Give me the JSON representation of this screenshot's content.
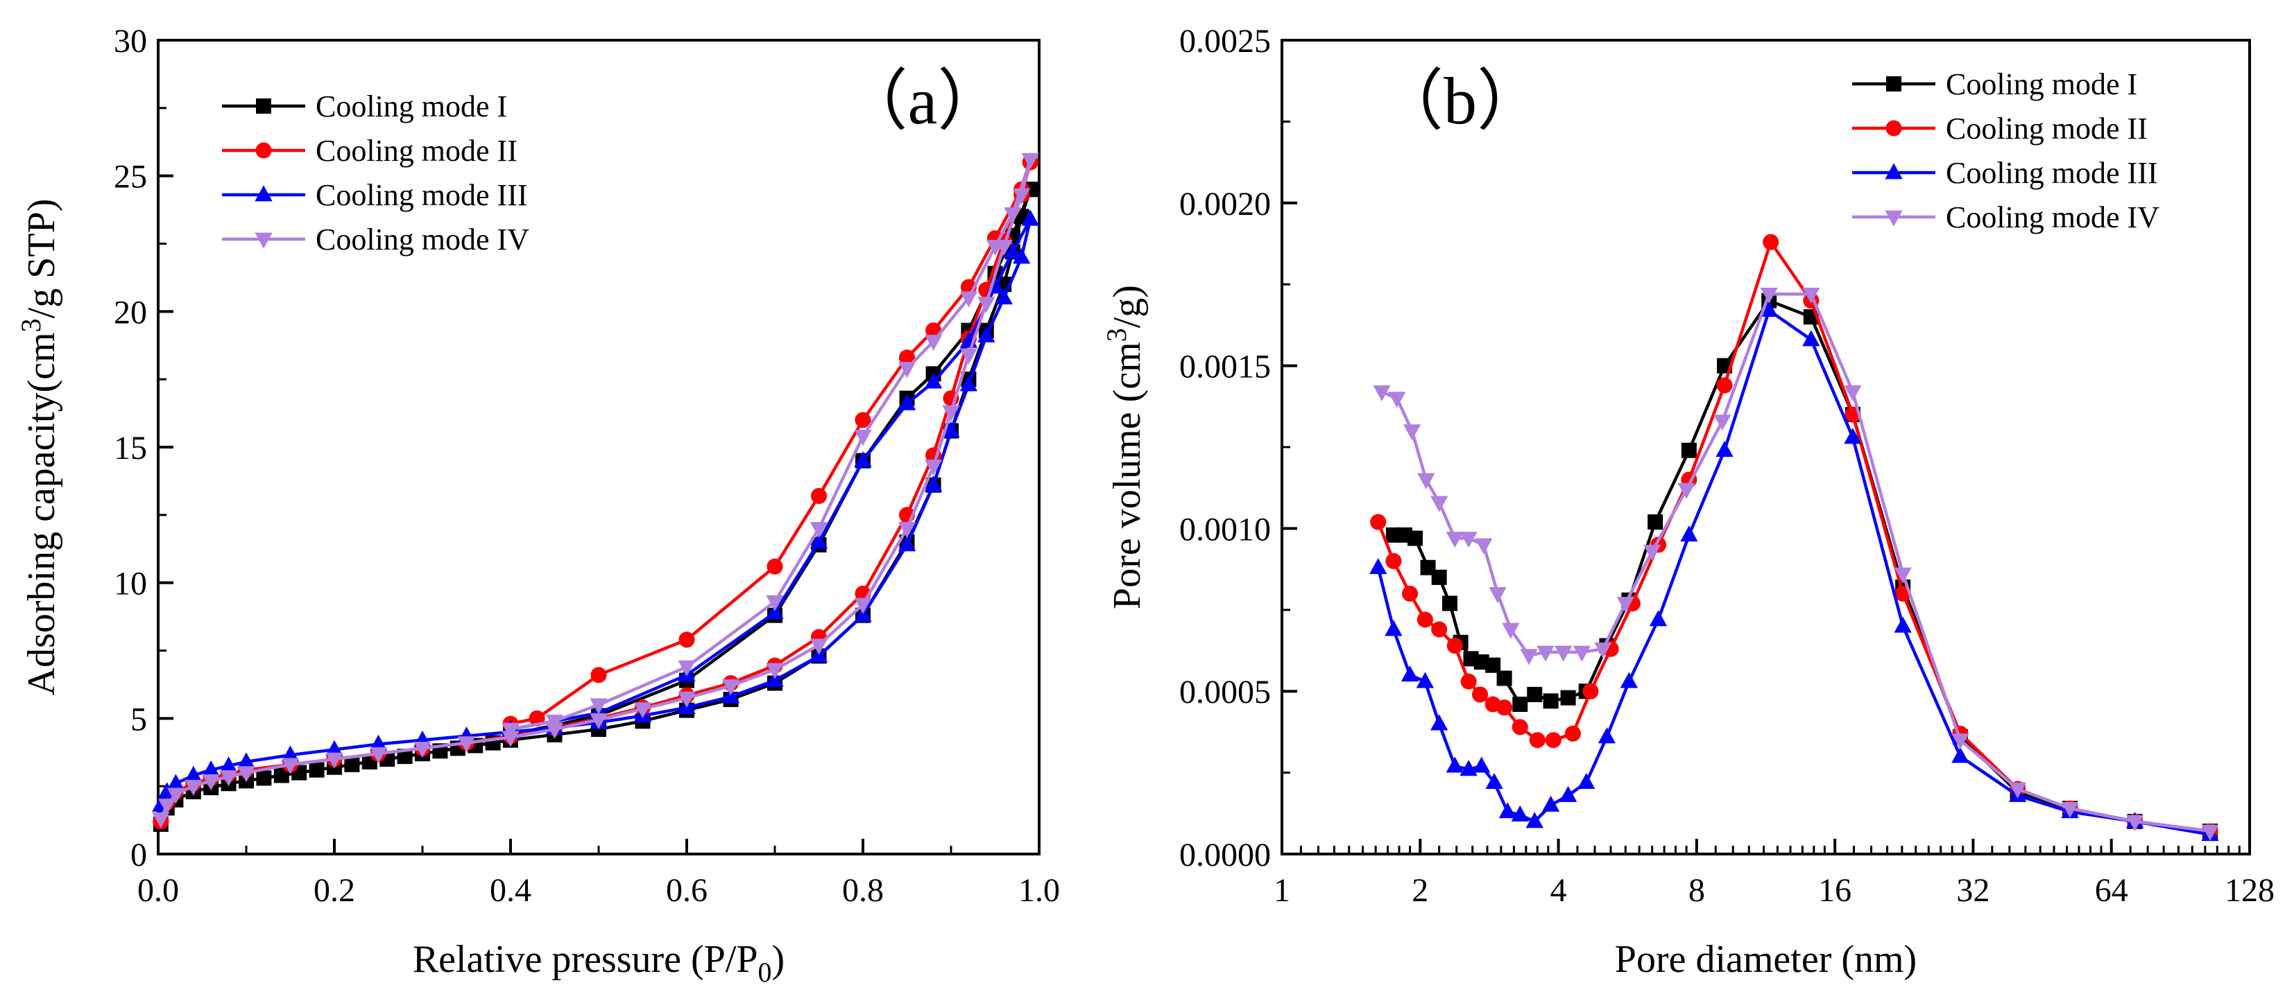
{
  "chart_data": [
    {
      "type": "line",
      "panel_label": "（a）",
      "xlabel": "Relative pressure (P/P",
      "xlabel_sub": "0",
      "xlabel_end": ")",
      "ylabel_pre": "Adsorbing capacity(cm",
      "ylabel_sup": "3",
      "ylabel_post": "/g STP)",
      "xlim": [
        0.0,
        1.0
      ],
      "ylim": [
        0,
        30
      ],
      "xticks": [
        0.0,
        0.2,
        0.4,
        0.6,
        0.8,
        1.0
      ],
      "xtick_labels": [
        "0.0",
        "0.2",
        "0.4",
        "0.6",
        "0.8",
        "1.0"
      ],
      "yticks": [
        0,
        5,
        10,
        15,
        20,
        25,
        30
      ],
      "ytick_labels": [
        "0",
        "5",
        "10",
        "15",
        "20",
        "25",
        "30"
      ],
      "legend_position": "top-left",
      "series": [
        {
          "name": "Cooling mode I",
          "color": "#000000",
          "marker": "square",
          "adsorption": {
            "x": [
              0.003,
              0.01,
              0.02,
              0.04,
              0.06,
              0.08,
              0.1,
              0.12,
              0.14,
              0.16,
              0.18,
              0.2,
              0.22,
              0.24,
              0.26,
              0.28,
              0.3,
              0.32,
              0.34,
              0.36,
              0.38,
              0.4,
              0.45,
              0.5,
              0.55,
              0.6,
              0.65,
              0.7,
              0.75,
              0.8,
              0.85,
              0.88,
              0.9,
              0.92,
              0.94,
              0.96,
              0.97,
              0.98,
              0.99
            ],
            "y": [
              1.1,
              1.7,
              2.0,
              2.3,
              2.45,
              2.6,
              2.7,
              2.8,
              2.9,
              3.0,
              3.1,
              3.2,
              3.3,
              3.4,
              3.5,
              3.6,
              3.7,
              3.8,
              3.9,
              4.0,
              4.1,
              4.2,
              4.4,
              4.6,
              4.9,
              5.3,
              5.7,
              6.3,
              7.3,
              8.8,
              11.5,
              13.6,
              15.6,
              17.5,
              19.3,
              21.0,
              22.2,
              23.5,
              24.5
            ]
          },
          "desorption": {
            "x": [
              0.99,
              0.97,
              0.95,
              0.92,
              0.88,
              0.85,
              0.8,
              0.75,
              0.7,
              0.6,
              0.5,
              0.4
            ],
            "y": [
              24.5,
              22.8,
              21.4,
              19.3,
              17.7,
              16.8,
              14.5,
              11.4,
              8.8,
              6.4,
              5.1,
              4.4
            ]
          }
        },
        {
          "name": "Cooling mode II",
          "color": "#ff0000",
          "marker": "circle",
          "adsorption": {
            "x": [
              0.003,
              0.01,
              0.02,
              0.04,
              0.06,
              0.08,
              0.1,
              0.15,
              0.2,
              0.25,
              0.3,
              0.35,
              0.4,
              0.45,
              0.5,
              0.55,
              0.6,
              0.65,
              0.7,
              0.75,
              0.8,
              0.85,
              0.88,
              0.9,
              0.92,
              0.94,
              0.96,
              0.98,
              0.99
            ],
            "y": [
              1.2,
              1.9,
              2.3,
              2.6,
              2.8,
              2.95,
              3.1,
              3.3,
              3.5,
              3.7,
              3.9,
              4.1,
              4.35,
              4.65,
              5.0,
              5.4,
              5.85,
              6.3,
              6.95,
              8.0,
              9.6,
              12.5,
              14.7,
              16.8,
              19.0,
              20.8,
              22.6,
              24.3,
              25.5
            ]
          },
          "desorption": {
            "x": [
              0.99,
              0.98,
              0.95,
              0.92,
              0.88,
              0.85,
              0.8,
              0.75,
              0.7,
              0.6,
              0.5,
              0.43,
              0.4
            ],
            "y": [
              25.5,
              24.5,
              22.7,
              20.9,
              19.3,
              18.3,
              16.0,
              13.2,
              10.6,
              7.9,
              6.6,
              5.0,
              4.8
            ]
          }
        },
        {
          "name": "Cooling mode III",
          "color": "#0000ff",
          "marker": "triangle-up",
          "adsorption": {
            "x": [
              0.003,
              0.01,
              0.02,
              0.04,
              0.06,
              0.08,
              0.1,
              0.15,
              0.2,
              0.25,
              0.3,
              0.35,
              0.4,
              0.45,
              0.5,
              0.55,
              0.6,
              0.65,
              0.7,
              0.75,
              0.8,
              0.85,
              0.88,
              0.9,
              0.92,
              0.94,
              0.96,
              0.98,
              0.99
            ],
            "y": [
              1.8,
              2.3,
              2.6,
              2.9,
              3.1,
              3.25,
              3.4,
              3.65,
              3.85,
              4.05,
              4.2,
              4.35,
              4.5,
              4.65,
              4.85,
              5.1,
              5.4,
              5.8,
              6.4,
              7.3,
              8.8,
              11.4,
              13.6,
              15.6,
              17.3,
              19.1,
              20.5,
              22.0,
              23.4
            ]
          },
          "desorption": {
            "x": [
              0.99,
              0.97,
              0.95,
              0.92,
              0.88,
              0.85,
              0.8,
              0.75,
              0.7,
              0.6,
              0.5,
              0.4
            ],
            "y": [
              23.4,
              22.2,
              20.9,
              18.9,
              17.4,
              16.6,
              14.5,
              11.5,
              8.9,
              6.6,
              5.2,
              4.6
            ]
          }
        },
        {
          "name": "Cooling mode IV",
          "color": "#b07fe0",
          "marker": "triangle-down",
          "adsorption": {
            "x": [
              0.003,
              0.01,
              0.02,
              0.04,
              0.06,
              0.08,
              0.1,
              0.15,
              0.2,
              0.25,
              0.3,
              0.35,
              0.4,
              0.45,
              0.5,
              0.55,
              0.6,
              0.65,
              0.7,
              0.75,
              0.8,
              0.85,
              0.88,
              0.9,
              0.92,
              0.94,
              0.96,
              0.98,
              0.99
            ],
            "y": [
              1.3,
              1.8,
              2.2,
              2.5,
              2.7,
              2.85,
              3.0,
              3.3,
              3.5,
              3.7,
              3.9,
              4.1,
              4.3,
              4.6,
              4.95,
              5.35,
              5.75,
              6.2,
              6.8,
              7.7,
              9.2,
              12.0,
              14.3,
              16.3,
              18.4,
              20.3,
              22.4,
              24.3,
              25.6
            ]
          },
          "desorption": {
            "x": [
              0.99,
              0.97,
              0.95,
              0.92,
              0.88,
              0.85,
              0.8,
              0.75,
              0.7,
              0.6,
              0.5,
              0.45,
              0.4
            ],
            "y": [
              25.6,
              23.6,
              22.4,
              20.5,
              18.9,
              17.9,
              15.4,
              12.0,
              9.3,
              6.9,
              5.5,
              4.9,
              4.6
            ]
          }
        }
      ]
    },
    {
      "type": "line",
      "panel_label": "（b）",
      "xlabel": "Pore diameter (nm)",
      "ylabel_pre": "Pore volume (cm",
      "ylabel_sup": "3",
      "ylabel_post": "/g)",
      "x_scale": "log2",
      "xlim": [
        1,
        128
      ],
      "ylim": [
        0,
        0.0025
      ],
      "xticks": [
        1,
        2,
        4,
        8,
        16,
        32,
        64,
        128
      ],
      "xtick_labels": [
        "1",
        "2",
        "4",
        "8",
        "16",
        "32",
        "64",
        "128"
      ],
      "yticks": [
        0,
        0.0005,
        0.001,
        0.0015,
        0.002,
        0.0025
      ],
      "ytick_labels": [
        "0.0000",
        "0.0005",
        "0.0010",
        "0.0015",
        "0.0020",
        "0.0025"
      ],
      "legend_position": "top-right",
      "series": [
        {
          "name": "Cooling mode I",
          "color": "#000000",
          "marker": "square",
          "x": [
            1.75,
            1.85,
            1.95,
            2.08,
            2.2,
            2.32,
            2.45,
            2.58,
            2.72,
            2.88,
            3.05,
            3.3,
            3.55,
            3.85,
            4.2,
            4.6,
            5.1,
            5.7,
            6.5,
            7.7,
            9.2,
            11.5,
            14.2,
            17.5,
            22.5,
            30.0,
            40.0,
            52.0,
            72.0,
            105.0
          ],
          "y": [
            0.00098,
            0.00098,
            0.00097,
            0.00088,
            0.00085,
            0.00077,
            0.00065,
            0.0006,
            0.00059,
            0.00058,
            0.00054,
            0.00046,
            0.00049,
            0.00047,
            0.00048,
            0.0005,
            0.00064,
            0.00078,
            0.00102,
            0.00124,
            0.0015,
            0.0017,
            0.00165,
            0.00135,
            0.00082,
            0.00036,
            0.00019,
            0.00014,
            0.0001,
            7e-05
          ]
        },
        {
          "name": "Cooling mode II",
          "color": "#ff0000",
          "marker": "circle",
          "x": [
            1.62,
            1.75,
            1.9,
            2.05,
            2.2,
            2.38,
            2.55,
            2.7,
            2.88,
            3.05,
            3.3,
            3.6,
            3.9,
            4.3,
            4.7,
            5.2,
            5.8,
            6.6,
            7.7,
            9.2,
            11.6,
            14.2,
            17.5,
            22.5,
            30.0,
            40.0,
            52.0,
            72.0,
            105.0
          ],
          "y": [
            0.00102,
            0.0009,
            0.0008,
            0.00072,
            0.00069,
            0.00064,
            0.00053,
            0.00049,
            0.00046,
            0.00045,
            0.00039,
            0.00035,
            0.00035,
            0.00037,
            0.0005,
            0.00063,
            0.00077,
            0.00095,
            0.00115,
            0.00144,
            0.00188,
            0.0017,
            0.00135,
            0.0008,
            0.00037,
            0.0002,
            0.00014,
            0.0001,
            7e-05
          ]
        },
        {
          "name": "Cooling mode III",
          "color": "#0000ff",
          "marker": "triangle-up",
          "x": [
            1.62,
            1.75,
            1.9,
            2.05,
            2.2,
            2.38,
            2.55,
            2.72,
            2.9,
            3.1,
            3.3,
            3.55,
            3.85,
            4.2,
            4.6,
            5.1,
            5.7,
            6.6,
            7.7,
            9.2,
            11.5,
            14.2,
            17.5,
            22.5,
            30.0,
            40.0,
            52.0,
            72.0,
            105.0
          ],
          "y": [
            0.00088,
            0.00069,
            0.00055,
            0.00053,
            0.0004,
            0.00027,
            0.00026,
            0.00027,
            0.00022,
            0.00013,
            0.00012,
            0.0001,
            0.00015,
            0.00018,
            0.00022,
            0.00036,
            0.00053,
            0.00072,
            0.00098,
            0.00124,
            0.00167,
            0.00158,
            0.00128,
            0.0007,
            0.0003,
            0.00018,
            0.00013,
            0.0001,
            6e-05
          ]
        },
        {
          "name": "Cooling mode IV",
          "color": "#b07fe0",
          "marker": "triangle-down",
          "x": [
            1.65,
            1.78,
            1.92,
            2.06,
            2.2,
            2.38,
            2.55,
            2.75,
            2.95,
            3.15,
            3.45,
            3.75,
            4.1,
            4.5,
            5.0,
            5.6,
            6.4,
            7.6,
            9.1,
            11.5,
            14.2,
            17.5,
            22.5,
            30.0,
            40.0,
            52.0,
            72.0,
            105.0
          ],
          "y": [
            0.00142,
            0.0014,
            0.0013,
            0.00115,
            0.00108,
            0.00097,
            0.00097,
            0.00095,
            0.0008,
            0.00069,
            0.00061,
            0.00062,
            0.00062,
            0.00062,
            0.00063,
            0.00077,
            0.00093,
            0.00112,
            0.00133,
            0.00172,
            0.00172,
            0.00142,
            0.00086,
            0.00035,
            0.0002,
            0.00014,
            0.0001,
            7e-05
          ]
        }
      ]
    }
  ]
}
